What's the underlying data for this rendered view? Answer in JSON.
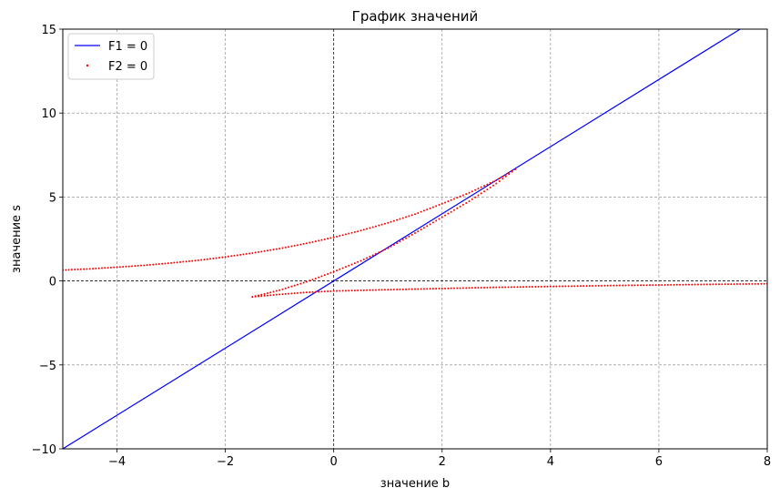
{
  "chart_data": {
    "type": "line",
    "title": "График значений",
    "xlabel": "значение b",
    "ylabel": "значение s",
    "xlim": [
      -5,
      8
    ],
    "ylim": [
      -10,
      15
    ],
    "xticks": [
      -4,
      -2,
      0,
      2,
      4,
      6,
      8
    ],
    "xtick_labels": [
      "−4",
      "−2",
      "0",
      "2",
      "4",
      "6",
      "8"
    ],
    "yticks": [
      -10,
      -5,
      0,
      5,
      10,
      15
    ],
    "ytick_labels": [
      "−10",
      "−5",
      "0",
      "5",
      "10",
      "15"
    ],
    "grid": true,
    "legend_position": "top-left",
    "series": [
      {
        "name": "F1 = 0",
        "style": "line",
        "color": "#0000ff",
        "x": [
          -5,
          7.5
        ],
        "y": [
          -10,
          15
        ]
      },
      {
        "name": "F2 = 0",
        "style": "points",
        "color": "#ff0000",
        "branches": [
          {
            "x": [
              -5.0,
              -4.5,
              -4.0,
              -3.5,
              -3.0,
              -2.5,
              -2.0,
              -1.5,
              -1.0,
              -0.5,
              0.0,
              0.5,
              1.0,
              1.5,
              2.0,
              2.5,
              3.0,
              3.35
            ],
            "y": [
              0.65,
              0.72,
              0.82,
              0.93,
              1.07,
              1.23,
              1.43,
              1.66,
              1.93,
              2.24,
              2.6,
              3.0,
              3.46,
              3.98,
              4.6,
              5.25,
              6.0,
              6.65
            ]
          },
          {
            "x": [
              3.35,
              3.0,
              2.5,
              2.0,
              1.5,
              1.0,
              0.5,
              0.0,
              -0.5,
              -1.0,
              -1.5
            ],
            "y": [
              6.65,
              5.8,
              4.75,
              3.8,
              2.85,
              1.95,
              1.2,
              0.55,
              -0.05,
              -0.55,
              -0.95
            ]
          },
          {
            "x": [
              -1.5,
              -1.0,
              -0.5,
              0.0,
              1.0,
              2.0,
              3.0,
              4.0,
              5.0,
              6.0,
              7.0,
              8.0
            ],
            "y": [
              -0.95,
              -0.8,
              -0.68,
              -0.6,
              -0.52,
              -0.45,
              -0.38,
              -0.33,
              -0.28,
              -0.24,
              -0.2,
              -0.17
            ]
          }
        ]
      }
    ],
    "reference_lines": {
      "x_zero": true,
      "y_zero": true
    }
  }
}
